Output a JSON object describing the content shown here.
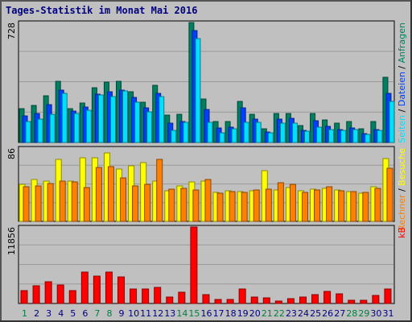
{
  "title": "Tages-Statistik im Monat Mai 2016",
  "colors": {
    "background": "#c0c0c0",
    "title": "#000080",
    "anfragen": "#008060",
    "dateien": "#0040ff",
    "seiten": "#00e0ff",
    "besuche": "#ffff00",
    "rechner": "#ff8000",
    "kb": "#ff0000",
    "weekend_label": "#008040",
    "weekday_label": "#000080"
  },
  "chart_data": [
    {
      "type": "bar",
      "panel": "top",
      "ymax_label": "728",
      "ylim": [
        0,
        728
      ],
      "categories": [
        "1",
        "2",
        "3",
        "4",
        "5",
        "6",
        "7",
        "8",
        "9",
        "10",
        "11",
        "12",
        "13",
        "14",
        "15",
        "16",
        "17",
        "18",
        "19",
        "20",
        "21",
        "22",
        "23",
        "24",
        "25",
        "26",
        "27",
        "28",
        "29",
        "30",
        "31"
      ],
      "right_label": {
        "parts": [
          "Anfragen",
          "/",
          "Dateien",
          "/",
          "Seiten"
        ]
      },
      "series": [
        {
          "name": "Anfragen",
          "values": [
            205,
            225,
            285,
            370,
            205,
            240,
            330,
            365,
            370,
            310,
            245,
            345,
            165,
            170,
            728,
            265,
            125,
            125,
            250,
            170,
            85,
            175,
            175,
            105,
            175,
            135,
            115,
            125,
            85,
            125,
            395
          ]
        },
        {
          "name": "Dateien",
          "values": [
            160,
            175,
            230,
            320,
            190,
            215,
            295,
            310,
            320,
            275,
            210,
            300,
            115,
            125,
            680,
            200,
            90,
            95,
            210,
            140,
            65,
            140,
            145,
            75,
            130,
            100,
            80,
            90,
            55,
            80,
            300
          ]
        },
        {
          "name": "Seiten",
          "values": [
            125,
            140,
            170,
            300,
            175,
            195,
            290,
            280,
            315,
            245,
            185,
            280,
            75,
            120,
            630,
            120,
            60,
            85,
            120,
            120,
            60,
            115,
            115,
            70,
            95,
            80,
            75,
            80,
            50,
            75,
            250
          ]
        }
      ]
    },
    {
      "type": "bar",
      "panel": "middle",
      "ymax_label": "86",
      "ylim": [
        0,
        86
      ],
      "categories": [
        "1",
        "2",
        "3",
        "4",
        "5",
        "6",
        "7",
        "8",
        "9",
        "10",
        "11",
        "12",
        "13",
        "14",
        "15",
        "16",
        "17",
        "18",
        "19",
        "20",
        "21",
        "22",
        "23",
        "24",
        "25",
        "26",
        "27",
        "28",
        "29",
        "30",
        "31"
      ],
      "right_label": {
        "parts": [
          "Besuche",
          "/",
          "Rechner"
        ]
      },
      "series": [
        {
          "name": "Besuche",
          "values": [
            43,
            49,
            47,
            73,
            47,
            75,
            75,
            80,
            61,
            65,
            69,
            47,
            36,
            42,
            46,
            47,
            34,
            36,
            35,
            36,
            60,
            37,
            40,
            36,
            38,
            39,
            37,
            35,
            33,
            41,
            74
          ]
        },
        {
          "name": "Rechner",
          "values": [
            41,
            42,
            44,
            47,
            46,
            40,
            63,
            64,
            51,
            42,
            43,
            73,
            38,
            39,
            37,
            49,
            33,
            35,
            34,
            37,
            38,
            45,
            43,
            34,
            37,
            41,
            36,
            35,
            34,
            39,
            62
          ]
        }
      ]
    },
    {
      "type": "bar",
      "panel": "bottom",
      "ymax_label": "11856",
      "ylim": [
        0,
        11856
      ],
      "categories": [
        "1",
        "2",
        "3",
        "4",
        "5",
        "6",
        "7",
        "8",
        "9",
        "10",
        "11",
        "12",
        "13",
        "14",
        "15",
        "16",
        "17",
        "18",
        "19",
        "20",
        "21",
        "22",
        "23",
        "24",
        "25",
        "26",
        "27",
        "28",
        "29",
        "30",
        "31"
      ],
      "right_label": {
        "parts": [
          "kB"
        ]
      },
      "series": [
        {
          "name": "kB",
          "values": [
            2000,
            2700,
            3400,
            2900,
            2000,
            4900,
            4300,
            4900,
            4100,
            2300,
            2300,
            2500,
            1000,
            1700,
            11856,
            1400,
            600,
            600,
            2200,
            1000,
            900,
            400,
            800,
            1000,
            1400,
            1900,
            1500,
            500,
            500,
            1200,
            2300
          ]
        }
      ]
    }
  ],
  "weekend_days": [
    1,
    7,
    8,
    14,
    15,
    21,
    22,
    28,
    29
  ]
}
